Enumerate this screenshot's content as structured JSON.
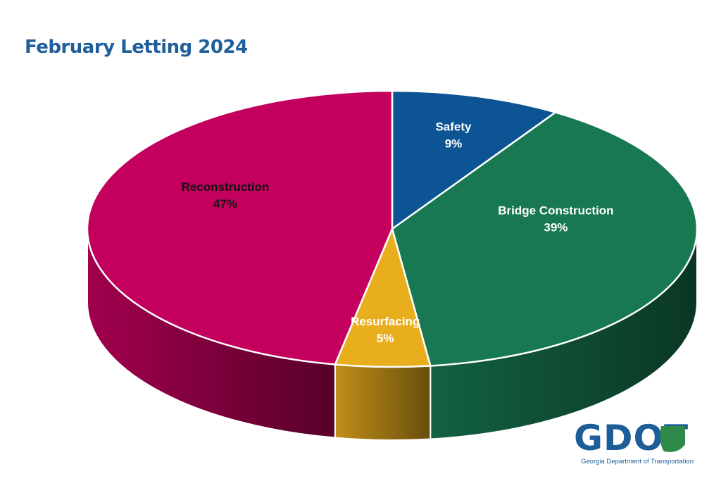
{
  "slide": {
    "title": "February Letting 2024"
  },
  "chart_data": {
    "type": "pie",
    "title": "February Letting 2024",
    "three_d": true,
    "slices": [
      {
        "label": "Safety",
        "value": 9,
        "percent_label": "9%",
        "color": "#0c5494",
        "label_color": "#ffffff"
      },
      {
        "label": "Bridge Construction",
        "value": 39,
        "percent_label": "39%",
        "color": "#177851",
        "label_color": "#ffffff"
      },
      {
        "label": "Resurfacing",
        "value": 5,
        "percent_label": "5%",
        "color": "#e9ae1d",
        "label_color": "#ffffff"
      },
      {
        "label": "Reconstruction",
        "value": 47,
        "percent_label": "47%",
        "color": "#c4005e",
        "label_color": "#111111"
      }
    ]
  },
  "logo": {
    "wordmark": "GDOT",
    "subtitle": "Georgia Department of Transportation",
    "color": "#1d5d98"
  }
}
